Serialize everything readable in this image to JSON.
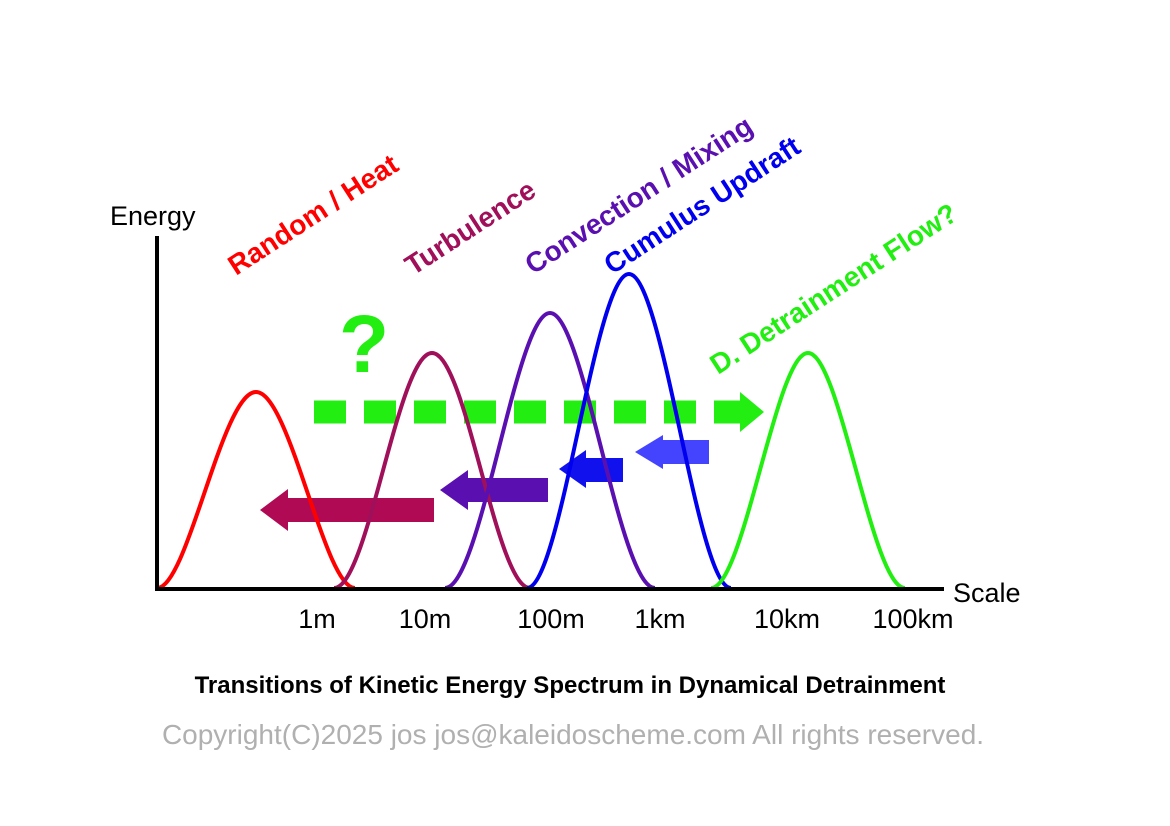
{
  "axes": {
    "y_label": "Energy",
    "x_label": "Scale",
    "x_ticks": [
      "1m",
      "10m",
      "100m",
      "1km",
      "10km",
      "100km"
    ]
  },
  "peaks": [
    {
      "name": "random-heat",
      "label": "Random / Heat",
      "color": "#ff0000"
    },
    {
      "name": "turbulence",
      "label": "Turbulence",
      "color": "#a0105a"
    },
    {
      "name": "convection-mixing",
      "label": "Convection / Mixing",
      "color": "#5a10b0"
    },
    {
      "name": "cumulus-updraft",
      "label": "Cumulus Updraft",
      "color": "#0000ee"
    },
    {
      "name": "detrainment-flow",
      "label": "D. Detrainment Flow?",
      "color": "#22ee11"
    }
  ],
  "question_mark": "?",
  "arrows": {
    "forward_dashed_color": "#22ee11",
    "backward_colors": [
      "#4444ff",
      "#1111ee",
      "#5a10b0",
      "#b00a55"
    ]
  },
  "caption": "Transitions of Kinetic Energy Spectrum in Dynamical Detrainment",
  "copyright": "Copyright(C)2025 jos jos@kaleidoscheme.com All rights reserved."
}
